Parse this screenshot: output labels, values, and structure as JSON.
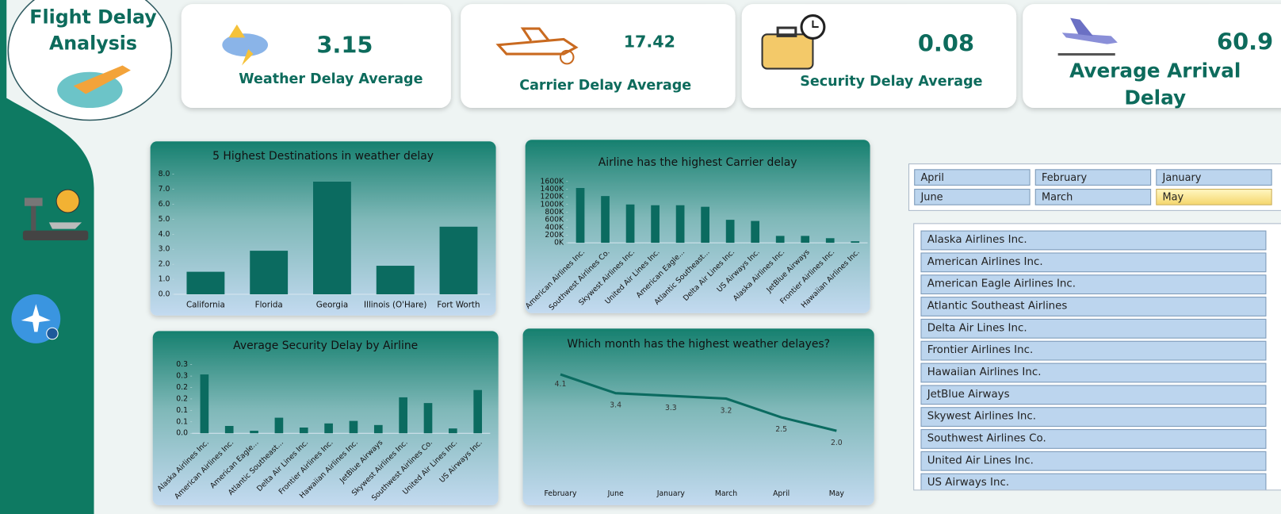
{
  "header": {
    "title": "Flight Delay Analysis"
  },
  "kpis": [
    {
      "value": 3.15,
      "label": "Weather Delay Average"
    },
    {
      "value": 17.42,
      "label": "Carrier Delay Average"
    },
    {
      "value": 0.08,
      "label": "Security Delay Average"
    },
    {
      "value": 60.9,
      "label": "Average Arrival Delay"
    }
  ],
  "month_slicer": {
    "items": [
      "April",
      "February",
      "January",
      "June",
      "March",
      "May"
    ],
    "selected": "May"
  },
  "airline_slicer": {
    "items": [
      "Alaska Airlines Inc.",
      "American Airlines Inc.",
      "American Eagle Airlines Inc.",
      "Atlantic Southeast Airlines",
      "Delta Air Lines Inc.",
      "Frontier Airlines Inc.",
      "Hawaiian Airlines Inc.",
      "JetBlue Airways",
      "Skywest Airlines Inc.",
      "Southwest Airlines Co.",
      "United Air Lines Inc.",
      "US Airways Inc."
    ]
  },
  "chart_data": [
    {
      "type": "bar",
      "title": "5 Highest Destinations in weather delay",
      "color": "#0b6b60",
      "categories": [
        "California",
        "Florida",
        "Georgia",
        "Illinois (O'Hare)",
        "Fort Worth"
      ],
      "values": [
        1.5,
        2.9,
        7.5,
        1.9,
        4.5
      ],
      "ylim": [
        0,
        8
      ],
      "yticks": [
        {
          "value": 0,
          "label": "0.0"
        },
        {
          "value": 1,
          "label": "1.0"
        },
        {
          "value": 2,
          "label": "2.0"
        },
        {
          "value": 3,
          "label": "3.0"
        },
        {
          "value": 4,
          "label": "4.0"
        },
        {
          "value": 5,
          "label": "5.0"
        },
        {
          "value": 6,
          "label": "6.0"
        },
        {
          "value": 7,
          "label": "7.0"
        },
        {
          "value": 8,
          "label": "8.0"
        }
      ]
    },
    {
      "type": "bar",
      "title": "Airline has the highest Carrier delay",
      "color": "#0b6b60",
      "categories": [
        "American Airlines Inc.",
        "Southwest Airlines Co.",
        "Skywest Airlines Inc.",
        "United Air Lines Inc.",
        "American Eagle...",
        "Atlantic Southeast...",
        "Delta Air Lines Inc.",
        "US Airways Inc.",
        "Alaska Airlines Inc.",
        "JetBlue Airways",
        "Frontier Airlines Inc.",
        "Hawaiian Airlines Inc."
      ],
      "values": [
        1430000,
        1220000,
        1000000,
        980000,
        980000,
        940000,
        600000,
        570000,
        180000,
        180000,
        120000,
        40000
      ],
      "ylim": [
        0,
        1600000
      ],
      "yticks": [
        {
          "value": 0,
          "label": "0K"
        },
        {
          "value": 200000,
          "label": "200K"
        },
        {
          "value": 400000,
          "label": "400K"
        },
        {
          "value": 600000,
          "label": "600K"
        },
        {
          "value": 800000,
          "label": "800K"
        },
        {
          "value": 1000000,
          "label": "1000K"
        },
        {
          "value": 1200000,
          "label": "1200K"
        },
        {
          "value": 1400000,
          "label": "1400K"
        },
        {
          "value": 1600000,
          "label": "1600K"
        }
      ]
    },
    {
      "type": "bar",
      "title": "Average Security Delay by Airline",
      "color": "#0b6b60",
      "categories": [
        "Alaska Airlines Inc.",
        "American Airlines Inc.",
        "American Eagle...",
        "Atlantic Southeast...",
        "Delta Air Lines Inc.",
        "Frontier Airlines Inc.",
        "Hawaiian Airlines Inc.",
        "JetBlue Airways",
        "Skywest Airlines Inc.",
        "Southwest Airlines Co.",
        "United Air Lines Inc.",
        "US Airways Inc."
      ],
      "values": [
        0.257,
        0.032,
        0.011,
        0.068,
        0.025,
        0.043,
        0.054,
        0.036,
        0.157,
        0.132,
        0.021,
        0.189
      ],
      "ylim": [
        0,
        0.3
      ],
      "yticks": [
        {
          "value": 0,
          "label": "0.0"
        },
        {
          "value": 0.05,
          "label": "0.1"
        },
        {
          "value": 0.1,
          "label": "0.1"
        },
        {
          "value": 0.15,
          "label": "0.2"
        },
        {
          "value": 0.2,
          "label": "0.2"
        },
        {
          "value": 0.25,
          "label": "0.3"
        },
        {
          "value": 0.3,
          "label": "0.3"
        }
      ]
    },
    {
      "type": "line",
      "title": "Which month has the highest weather delayes?",
      "color": "#0b6b60",
      "categories": [
        "February",
        "June",
        "January",
        "March",
        "April",
        "May"
      ],
      "values": [
        4.1,
        3.4,
        3.3,
        3.2,
        2.5,
        2.0
      ],
      "value_labels": [
        "4.1",
        "3.4",
        "3.3",
        "3.2",
        "2.5",
        "2.0"
      ]
    }
  ]
}
